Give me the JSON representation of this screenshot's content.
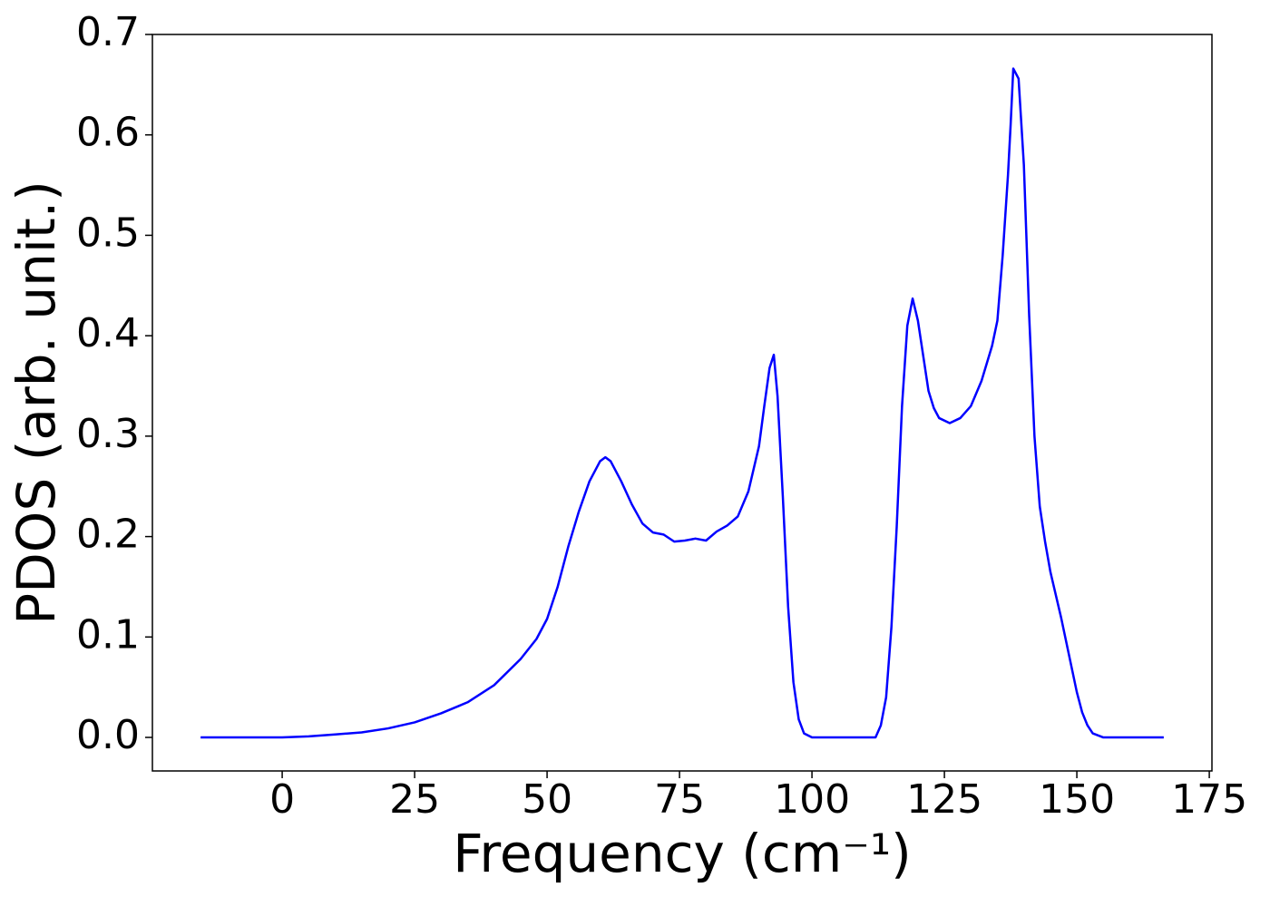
{
  "chart_data": {
    "type": "line",
    "xlabel": "Frequency (cm⁻¹)",
    "ylabel": "PDOS (arb. unit.)",
    "x": [
      -15.4,
      0,
      5,
      10,
      15,
      20,
      25,
      30,
      35,
      40,
      45,
      48,
      50,
      52,
      54,
      56,
      58,
      60,
      61,
      62,
      64,
      66,
      68,
      70,
      72,
      74,
      76,
      78,
      80,
      82,
      84,
      86,
      88,
      90,
      91,
      92,
      92.8,
      93.5,
      94.5,
      95.5,
      96.5,
      97.5,
      98.5,
      100,
      112,
      113,
      114,
      115,
      116,
      117,
      118,
      119,
      120,
      121,
      122,
      123,
      124,
      126,
      128,
      130,
      132,
      134,
      135,
      136,
      137,
      137.5,
      138,
      139,
      140,
      141,
      142,
      143,
      144,
      145,
      147,
      149,
      150,
      151,
      152,
      153,
      155,
      166.4
    ],
    "series": [
      {
        "name": "PDOS",
        "color": "#0000ff",
        "values": [
          0,
          0,
          0.001,
          0.003,
          0.005,
          0.009,
          0.015,
          0.024,
          0.035,
          0.052,
          0.078,
          0.098,
          0.118,
          0.15,
          0.19,
          0.225,
          0.255,
          0.275,
          0.279,
          0.275,
          0.255,
          0.232,
          0.213,
          0.204,
          0.202,
          0.195,
          0.196,
          0.198,
          0.196,
          0.205,
          0.211,
          0.22,
          0.245,
          0.29,
          0.33,
          0.368,
          0.381,
          0.34,
          0.24,
          0.13,
          0.055,
          0.018,
          0.004,
          0,
          0,
          0.012,
          0.04,
          0.11,
          0.21,
          0.33,
          0.41,
          0.437,
          0.415,
          0.38,
          0.345,
          0.328,
          0.318,
          0.313,
          0.318,
          0.33,
          0.355,
          0.39,
          0.415,
          0.48,
          0.56,
          0.61,
          0.666,
          0.656,
          0.57,
          0.42,
          0.3,
          0.23,
          0.195,
          0.165,
          0.12,
          0.07,
          0.045,
          0.025,
          0.012,
          0.004,
          0,
          0
        ]
      }
    ],
    "xlim": [
      -24.5,
      175.5
    ],
    "ylim": [
      -0.0334,
      0.7
    ],
    "xticks": [
      0,
      25,
      50,
      75,
      100,
      125,
      150,
      175
    ],
    "yticks": [
      {
        "value": 0,
        "label": "0.0"
      },
      0.1,
      0.2,
      0.3,
      0.4,
      0.5,
      0.6,
      0.7
    ],
    "grid": false
  }
}
